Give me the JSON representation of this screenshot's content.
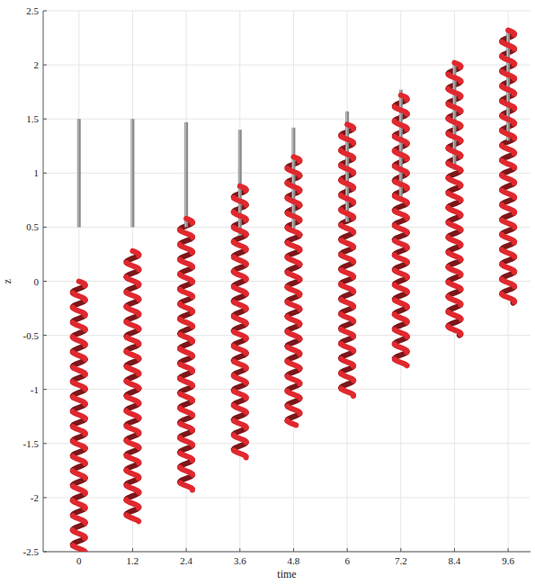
{
  "chart_data": {
    "type": "filament",
    "x_label": "time",
    "y_label": "z",
    "x": [
      0,
      1.2,
      2.4,
      3.6,
      4.8,
      6,
      7.2,
      8.4,
      9.6
    ],
    "xlim": [
      -0.8,
      10.1
    ],
    "xticks": [
      0,
      1.2,
      2.4,
      3.6,
      4.8,
      6,
      7.2,
      8.4,
      9.6
    ],
    "ylim": [
      -2.5,
      2.5
    ],
    "yticks": [
      -2.5,
      -2,
      -1.5,
      -1,
      -0.5,
      0,
      0.5,
      1,
      1.5,
      2,
      2.5
    ],
    "grid": true,
    "series": [
      {
        "marker": "rod",
        "color": "#8a8a8a",
        "low": [
          0.5,
          0.5,
          0.5,
          0.42,
          0.45,
          0.55,
          0.78,
          1.03,
          1.3
        ],
        "high": [
          1.5,
          1.5,
          1.47,
          1.4,
          1.42,
          1.57,
          1.77,
          2.0,
          2.3
        ]
      },
      {
        "marker": "helix",
        "color": "#e0282e",
        "low": [
          -2.5,
          -2.22,
          -1.93,
          -1.63,
          -1.33,
          -1.06,
          -0.78,
          -0.5,
          -0.2
        ],
        "high": [
          0.0,
          0.28,
          0.58,
          0.88,
          1.15,
          1.45,
          1.72,
          2.02,
          2.32
        ]
      }
    ]
  }
}
